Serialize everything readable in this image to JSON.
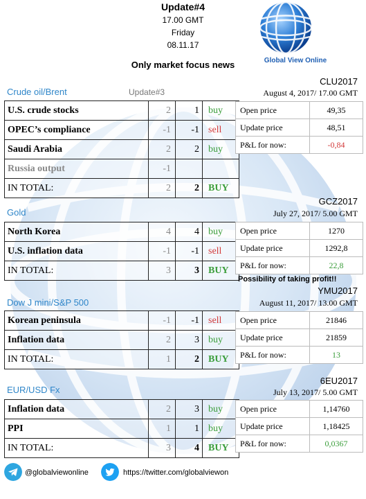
{
  "header": {
    "title": "Update#4",
    "time": "17.00 GMT",
    "day": "Friday",
    "date": "08.11.17",
    "focus": "Only market focus news",
    "logo_text": "Global View Online"
  },
  "colors": {
    "title_blue": "#2f86c9",
    "buy_green": "#3a9d3a",
    "sell_red": "#d23a3a"
  },
  "sections": [
    {
      "title": "Crude oil/Brent",
      "update_label": "Update#3",
      "rows": [
        {
          "name": "U.S. crude stocks",
          "prev": "2",
          "cur": "1",
          "signal": "buy"
        },
        {
          "name": "OPEC’s compliance",
          "prev": "-1",
          "cur": "-1",
          "signal": "sell"
        },
        {
          "name": "Saudi Arabia",
          "prev": "2",
          "cur": "2",
          "signal": "buy"
        },
        {
          "name": "Russia output",
          "prev": "-1",
          "cur": "",
          "signal": ""
        },
        {
          "name": "IN TOTAL:",
          "prev": "2",
          "cur": "2",
          "signal": "BUY"
        }
      ],
      "contract": {
        "code": "CLU2017",
        "date": "August 4, 2017/ 17.00 GMT",
        "open_label": "Open price",
        "open": "49,35",
        "update_label": "Update price",
        "update": "48,51",
        "pl_label": "P&L for now:",
        "pl": "-0,84"
      }
    },
    {
      "title": "Gold",
      "rows": [
        {
          "name": "North Korea",
          "prev": "4",
          "cur": "4",
          "signal": "buy"
        },
        {
          "name": "U.S. inflation data",
          "prev": "-1",
          "cur": "-1",
          "signal": "sell"
        },
        {
          "name": "IN TOTAL:",
          "prev": "3",
          "cur": "3",
          "signal": "BUY"
        }
      ],
      "contract": {
        "code": "GCZ2017",
        "date": "July 27, 2017/ 5.00 GMT",
        "open_label": "Open price",
        "open": "1270",
        "update_label": "Update price",
        "update": "1292,8",
        "pl_label": "P&L for now:",
        "pl": "22,8"
      },
      "note": "Possibility of taking profit!!"
    },
    {
      "title": "Dow J mini/S&P 500",
      "rows": [
        {
          "name": "Korean peninsula",
          "prev": "-1",
          "cur": "-1",
          "signal": "sell"
        },
        {
          "name": "Inflation data",
          "prev": "2",
          "cur": "3",
          "signal": "buy"
        },
        {
          "name": "IN TOTAL:",
          "prev": "1",
          "cur": "2",
          "signal": "BUY"
        }
      ],
      "contract": {
        "code": "YMU2017",
        "date": "August 11, 2017/ 13.00 GMT",
        "open_label": "Open price",
        "open": "21846",
        "update_label": "Update price",
        "update": "21859",
        "pl_label": "P&L for now:",
        "pl": "13"
      }
    },
    {
      "title": "EUR/USD Fx",
      "rows": [
        {
          "name": "Inflation data",
          "prev": "2",
          "cur": "3",
          "signal": "buy"
        },
        {
          "name": "PPI",
          "prev": "1",
          "cur": "1",
          "signal": "buy"
        },
        {
          "name": "IN TOTAL:",
          "prev": "3",
          "cur": "4",
          "signal": "BUY"
        }
      ],
      "contract": {
        "code": "6EU2017",
        "date": "July 13, 2017/ 5.00 GMT",
        "open_label": "Open price",
        "open": "1,14760",
        "update_label": "Update price",
        "update": "1,18425",
        "pl_label": "P&L for now:",
        "pl": "0,0367"
      }
    }
  ],
  "footer": {
    "telegram_icon": "telegram-icon",
    "telegram": "@globalviewonline",
    "twitter_icon": "twitter-icon",
    "twitter": "https://twitter.com/globalviewon"
  }
}
